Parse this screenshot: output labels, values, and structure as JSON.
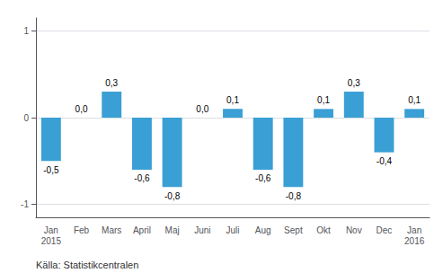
{
  "chart_data": {
    "type": "bar",
    "categories": [
      "Jan\n2015",
      "Feb",
      "Mars",
      "April",
      "Maj",
      "Juni",
      "Juli",
      "Aug",
      "Sept",
      "Okt",
      "Nov",
      "Dec",
      "Jan\n2016"
    ],
    "values": [
      -0.5,
      0.0,
      0.3,
      -0.6,
      -0.8,
      0.0,
      0.1,
      -0.6,
      -0.8,
      0.1,
      0.3,
      -0.4,
      0.1
    ],
    "value_labels": [
      "-0,5",
      "0,0",
      "0,3",
      "-0,6",
      "-0,8",
      "0,0",
      "0,1",
      "-0,6",
      "-0,8",
      "0,1",
      "0,3",
      "-0,4",
      "0,1"
    ],
    "color": "#3a9fd4",
    "ylim": [
      -1.15,
      1.15
    ],
    "yticks": [
      -1,
      0,
      1
    ],
    "grid": true,
    "data_labels": true,
    "annotation": "Källa: Statistikcentralen"
  }
}
